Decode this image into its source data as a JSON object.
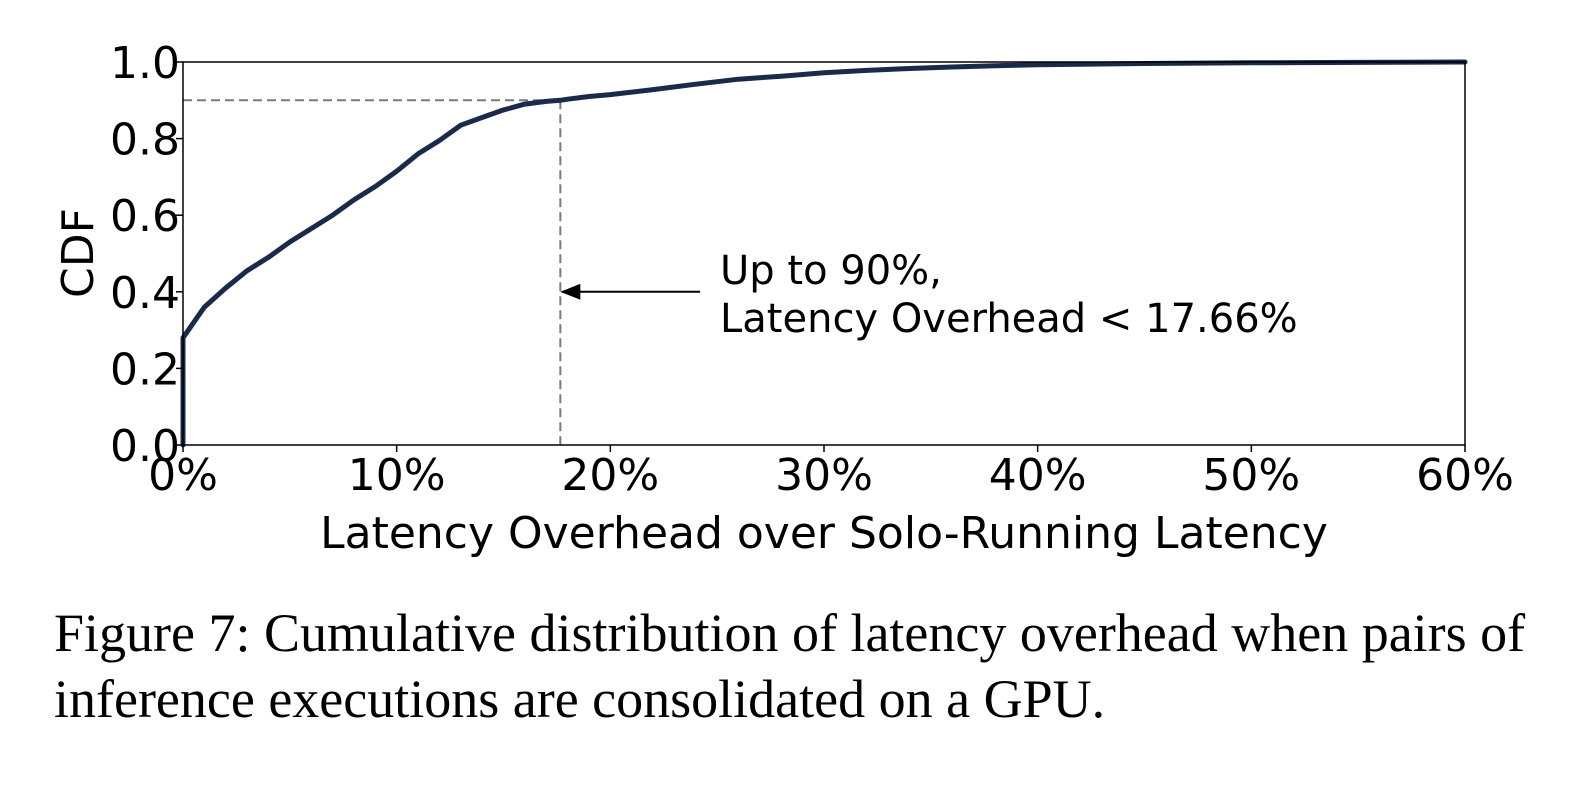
{
  "chart_data": {
    "type": "line",
    "title": "",
    "xlabel": "Latency Overhead over Solo-Running Latency",
    "ylabel": "CDF",
    "xlim": [
      0,
      60
    ],
    "ylim": [
      0,
      1
    ],
    "x_ticks": [
      0,
      10,
      20,
      30,
      40,
      50,
      60
    ],
    "x_tick_labels": [
      "0%",
      "10%",
      "20%",
      "30%",
      "40%",
      "50%",
      "60%"
    ],
    "y_ticks": [
      0,
      0.2,
      0.4,
      0.6,
      0.8,
      1.0
    ],
    "y_tick_labels": [
      "0.0",
      "0.2",
      "0.4",
      "0.6",
      "0.8",
      "1.0"
    ],
    "grid": false,
    "series": [
      {
        "name": "",
        "color": "#1b2a4a",
        "x": [
          0,
          0,
          0.5,
          1,
          1.5,
          2,
          3,
          4,
          5,
          6,
          7,
          8,
          9,
          10,
          11,
          12,
          13,
          14,
          15,
          16,
          17,
          17.66,
          18,
          19,
          20,
          22,
          24,
          26,
          28,
          30,
          32,
          34,
          36,
          38,
          40,
          45,
          50,
          55,
          60
        ],
        "y": [
          0,
          0.28,
          0.32,
          0.36,
          0.385,
          0.41,
          0.455,
          0.49,
          0.53,
          0.565,
          0.6,
          0.64,
          0.675,
          0.715,
          0.76,
          0.795,
          0.835,
          0.855,
          0.875,
          0.89,
          0.897,
          0.9,
          0.903,
          0.91,
          0.915,
          0.928,
          0.942,
          0.955,
          0.963,
          0.972,
          0.978,
          0.983,
          0.987,
          0.99,
          0.993,
          0.996,
          0.998,
          0.999,
          1.0
        ]
      }
    ],
    "reference_lines": {
      "x": 17.66,
      "y": 0.9,
      "style": "dashed",
      "color": "#7a7a7a"
    },
    "annotation": {
      "line1": "Up to 90%,",
      "line2": "Latency Overhead < 17.66%",
      "arrow_target": {
        "x": 17.66,
        "y": 0.4
      },
      "arrow_tail_x": 24.2
    }
  },
  "caption": "Figure 7: Cumulative distribution of latency overhead when pairs of inference executions are consolidated on a GPU."
}
